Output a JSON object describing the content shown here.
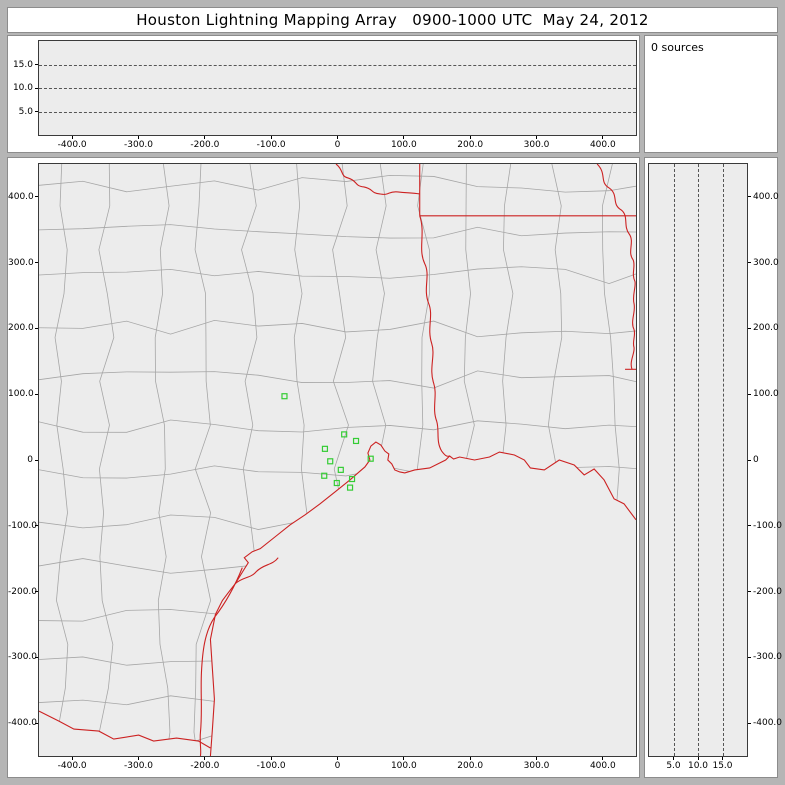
{
  "window": {
    "title": "Houston Lightning Mapping Array   0900-1000 UTC  May 24, 2012"
  },
  "sources_panel": {
    "label": "0 sources"
  },
  "colors": {
    "frame_gray": "#b5b5b5",
    "panel_white": "#ffffff",
    "plot_background": "#ececec",
    "grid_dash": "#555555",
    "county_line_gray": "#a6a6a6",
    "state_border_red": "#cc2222",
    "station_green": "#33cc33",
    "axis_text": "#000000"
  },
  "chart_data": [
    {
      "type": "scatter",
      "panel": "altitude_vs_east_west",
      "x_range": [
        -450,
        450
      ],
      "y_range": [
        0,
        20
      ],
      "x_ticks": {
        "values": [
          -400,
          -300,
          -200,
          -100,
          0,
          100,
          200,
          300,
          400
        ],
        "labels": [
          "-400.0",
          "-300.0",
          "-200.0",
          "-100.0",
          "0",
          "100.0",
          "200.0",
          "300.0",
          "400.0"
        ]
      },
      "y_gridlines": {
        "values": [
          15,
          10,
          5
        ],
        "labels": [
          "15.0",
          "10.0",
          "5.0"
        ]
      },
      "points": []
    },
    {
      "type": "scatter",
      "panel": "plan_view_map",
      "x_range": [
        -450,
        450
      ],
      "y_range": [
        -450,
        450
      ],
      "x_ticks": {
        "values": [
          -400,
          -300,
          -200,
          -100,
          0,
          100,
          200,
          300,
          400
        ],
        "labels": [
          "-400.0",
          "-300.0",
          "-200.0",
          "-100.0",
          "0",
          "100.0",
          "200.0",
          "300.0",
          "400.0"
        ]
      },
      "y_ticks": {
        "values": [
          400,
          300,
          200,
          100,
          0,
          -100,
          -200,
          -300,
          -400
        ],
        "labels": [
          "400.0",
          "300.0",
          "200.0",
          "100.0",
          "0",
          "-100.0",
          "-200.0",
          "-300.0",
          "-400.0"
        ]
      },
      "stations_km": [
        [
          -80,
          97
        ],
        [
          10,
          39
        ],
        [
          28,
          29
        ],
        [
          -19,
          17
        ],
        [
          50,
          2
        ],
        [
          -11,
          -2
        ],
        [
          5,
          -15
        ],
        [
          -20,
          -24
        ],
        [
          22,
          -29
        ],
        [
          -1,
          -35
        ],
        [
          19,
          -42
        ]
      ],
      "points": []
    },
    {
      "type": "scatter",
      "panel": "altitude_vs_north_south",
      "x_range": [
        0,
        20
      ],
      "y_range": [
        -450,
        450
      ],
      "x_gridlines": {
        "values": [
          5,
          10,
          15
        ],
        "labels": [
          "5.0",
          "10.0",
          "15.0"
        ]
      },
      "y_ticks": {
        "values": [
          400,
          300,
          200,
          100,
          0,
          -100,
          -200,
          -300,
          -400
        ],
        "labels": [
          "400.0",
          "300.0",
          "200.0",
          "100.0",
          "0",
          "-100.0",
          "-200.0",
          "-300.0",
          "-400.0"
        ]
      },
      "points": []
    }
  ]
}
